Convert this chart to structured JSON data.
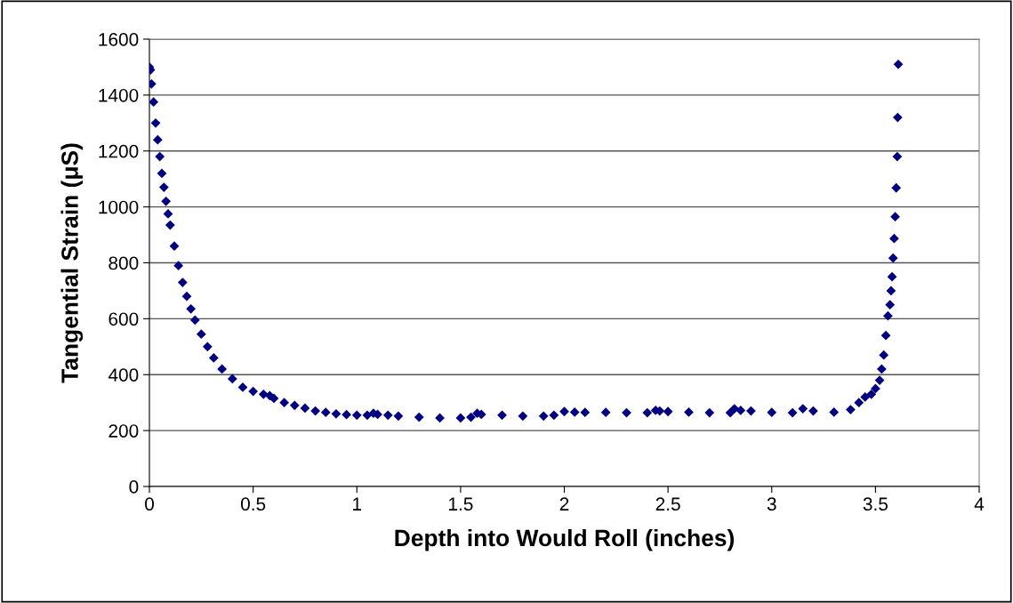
{
  "chart_data": {
    "type": "scatter",
    "xlabel": "Depth into Would Roll (inches)",
    "ylabel": "Tangential Strain (μS)",
    "xlim": [
      0,
      4
    ],
    "xticks": [
      0,
      0.5,
      1,
      1.5,
      2,
      2.5,
      3,
      3.5,
      4
    ],
    "ylim": [
      0,
      1600
    ],
    "yticks": [
      0,
      200,
      400,
      600,
      800,
      1000,
      1200,
      1400,
      1600
    ],
    "grid": "y",
    "marker": "diamond",
    "series": [
      {
        "color": "#000080",
        "x": [
          0,
          0.005,
          0.01,
          0.02,
          0.03,
          0.04,
          0.05,
          0.06,
          0.07,
          0.08,
          0.09,
          0.1,
          0.12,
          0.14,
          0.16,
          0.18,
          0.2,
          0.22,
          0.25,
          0.28,
          0.31,
          0.35,
          0.4,
          0.45,
          0.5,
          0.55,
          0.58,
          0.6,
          0.65,
          0.7,
          0.75,
          0.8,
          0.85,
          0.9,
          0.95,
          1.0,
          1.05,
          1.08,
          1.1,
          1.15,
          1.2,
          1.3,
          1.4,
          1.5,
          1.55,
          1.58,
          1.6,
          1.7,
          1.8,
          1.9,
          1.95,
          2.0,
          2.05,
          2.1,
          2.2,
          2.3,
          2.4,
          2.44,
          2.46,
          2.5,
          2.6,
          2.7,
          2.8,
          2.82,
          2.85,
          2.9,
          3.0,
          3.1,
          3.15,
          3.2,
          3.3,
          3.38,
          3.42,
          3.45,
          3.48,
          3.5,
          3.52,
          3.53,
          3.54,
          3.55,
          3.56,
          3.57,
          3.575,
          3.58,
          3.585,
          3.59,
          3.595,
          3.6,
          3.605,
          3.607,
          3.61
        ],
        "values": [
          1500,
          1490,
          1440,
          1375,
          1300,
          1240,
          1180,
          1120,
          1070,
          1020,
          975,
          935,
          860,
          790,
          730,
          680,
          635,
          595,
          545,
          500,
          460,
          420,
          385,
          355,
          340,
          330,
          325,
          315,
          300,
          290,
          280,
          270,
          265,
          260,
          257,
          255,
          255,
          262,
          258,
          255,
          252,
          248,
          245,
          245,
          248,
          262,
          258,
          255,
          252,
          252,
          255,
          268,
          266,
          265,
          265,
          264,
          264,
          272,
          270,
          268,
          266,
          264,
          264,
          278,
          272,
          270,
          265,
          264,
          278,
          270,
          266,
          275,
          300,
          320,
          330,
          350,
          380,
          420,
          470,
          540,
          610,
          650,
          700,
          750,
          817,
          887,
          965,
          1068,
          1180,
          1320,
          1510
        ]
      }
    ]
  }
}
